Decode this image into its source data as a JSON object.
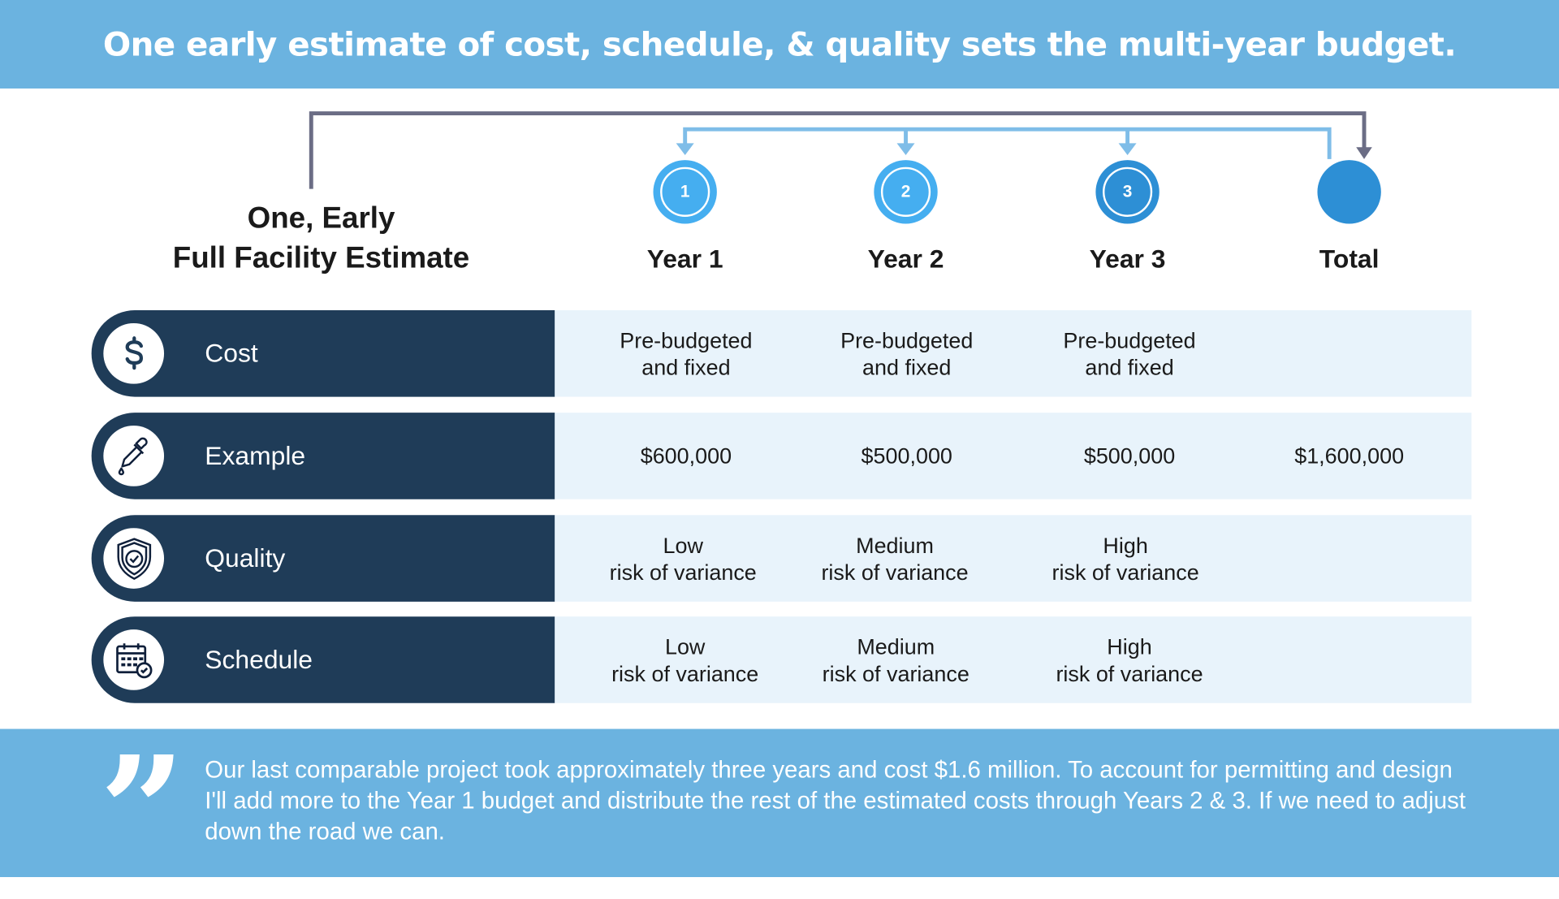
{
  "header": {
    "title": "One early estimate of cost, schedule, & quality sets the multi-year budget."
  },
  "left_title": {
    "line1": "One, Early",
    "line2": "Full Facility Estimate"
  },
  "columns": [
    {
      "number": "1",
      "label": "Year 1",
      "color": "#45aef0"
    },
    {
      "number": "2",
      "label": "Year 2",
      "color": "#45aef0"
    },
    {
      "number": "3",
      "label": "Year 3",
      "color": "#2d8fd5"
    },
    {
      "number": "",
      "label": "Total",
      "color": "#2d8fd5"
    }
  ],
  "rows": [
    {
      "label": "Cost",
      "icon": "dollar-icon",
      "cells": [
        "Pre-budgeted\nand fixed",
        "Pre-budgeted\nand fixed",
        "Pre-budgeted\nand fixed",
        ""
      ]
    },
    {
      "label": "Example",
      "icon": "dropper-icon",
      "cells": [
        "$600,000",
        "$500,000",
        "$500,000",
        "$1,600,000"
      ]
    },
    {
      "label": "Quality",
      "icon": "shield-check-icon",
      "cells": [
        "Low\nrisk of variance",
        "Medium\nrisk of variance",
        "High\nrisk of variance",
        ""
      ]
    },
    {
      "label": "Schedule",
      "icon": "calendar-check-icon",
      "cells": [
        "Low\nrisk of variance",
        "Medium\nrisk of variance",
        "High\nrisk of variance",
        ""
      ]
    }
  ],
  "footer": {
    "quote_icon": "quote-icon",
    "text": "Our last comparable project took approximately three years and cost $1.6 million. To account for permitting and design I'll add more to the Year 1 budget and distribute the rest of the estimated costs through Years 2 & 3. If we need to adjust down the road we can."
  },
  "colors": {
    "header": "#6bb3e0",
    "row_dark": "#1f3c58",
    "row_light": "#e8f3fb",
    "bracket_dark": "#6b6d85",
    "bracket_light": "#7fbde8"
  }
}
